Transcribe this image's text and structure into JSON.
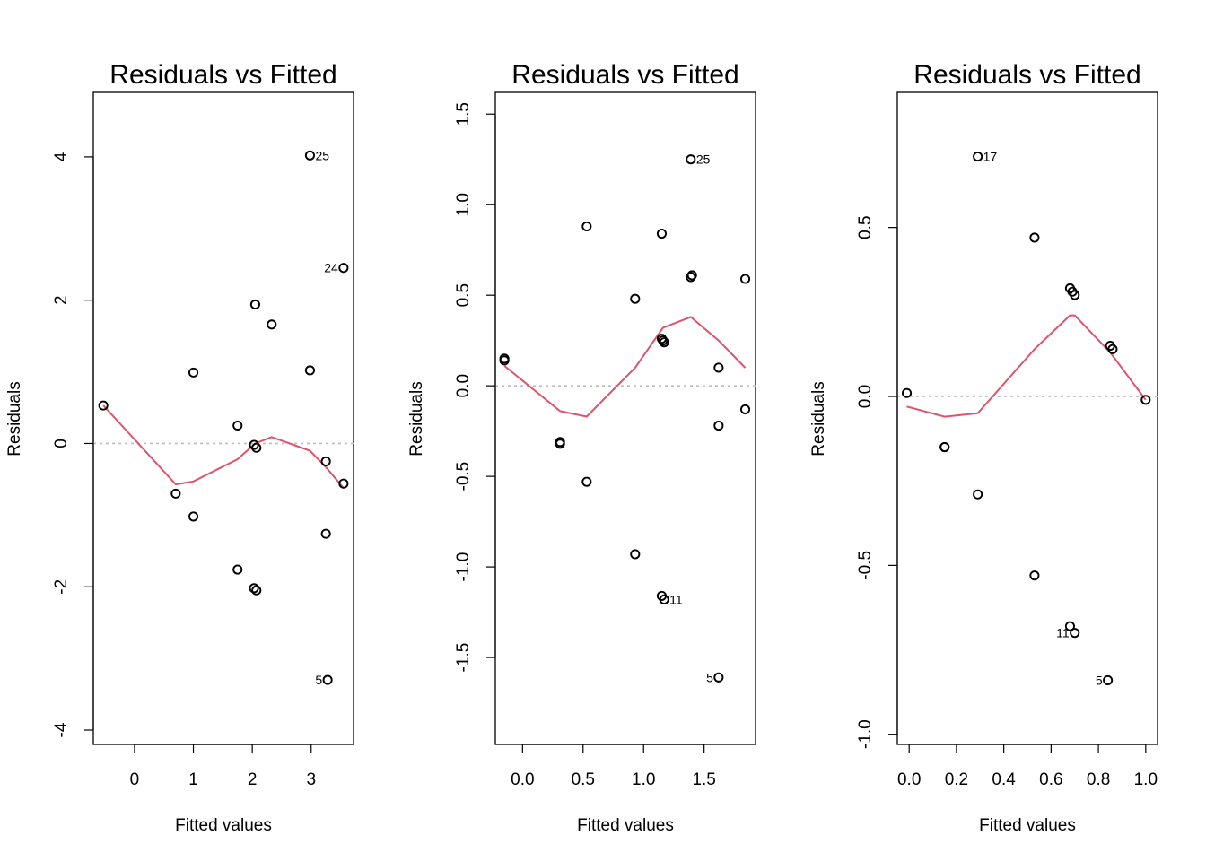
{
  "colors": {
    "smoother": "#DF536B",
    "zero_line": "#BEBEBE",
    "points": "#000000"
  },
  "chart_data": [
    {
      "type": "scatter",
      "title": "Residuals vs Fitted",
      "xlabel": "Fitted values",
      "ylabel": "Residuals",
      "xlim": [
        -0.7,
        3.72
      ],
      "ylim": [
        -4.2,
        4.9
      ],
      "xticks": [
        0,
        1,
        2,
        3
      ],
      "yticks": [
        -4,
        -2,
        0,
        2,
        4
      ],
      "points": [
        {
          "x": -0.53,
          "y": 0.53
        },
        {
          "x": 0.7,
          "y": -0.7
        },
        {
          "x": 1.0,
          "y": 0.99
        },
        {
          "x": 1.0,
          "y": -1.02
        },
        {
          "x": 1.75,
          "y": 0.25
        },
        {
          "x": 1.75,
          "y": -1.76
        },
        {
          "x": 2.03,
          "y": -0.02
        },
        {
          "x": 2.07,
          "y": -0.06
        },
        {
          "x": 2.05,
          "y": 1.94
        },
        {
          "x": 2.03,
          "y": -2.02
        },
        {
          "x": 2.07,
          "y": -2.05
        },
        {
          "x": 2.33,
          "y": 1.66
        },
        {
          "x": 2.98,
          "y": 4.02,
          "label": "25",
          "label_side": "right"
        },
        {
          "x": 2.98,
          "y": 1.02
        },
        {
          "x": 3.25,
          "y": -0.25
        },
        {
          "x": 3.25,
          "y": -1.26
        },
        {
          "x": 3.28,
          "y": -3.3,
          "label": "5",
          "label_side": "left"
        },
        {
          "x": 3.55,
          "y": 2.45,
          "label": "24",
          "label_side": "left"
        },
        {
          "x": 3.55,
          "y": -0.56
        }
      ],
      "smoother": [
        {
          "x": -0.53,
          "y": 0.53
        },
        {
          "x": 0.7,
          "y": -0.57
        },
        {
          "x": 1.0,
          "y": -0.53
        },
        {
          "x": 1.75,
          "y": -0.22
        },
        {
          "x": 2.05,
          "y": 0.0
        },
        {
          "x": 2.33,
          "y": 0.09
        },
        {
          "x": 2.98,
          "y": -0.1
        },
        {
          "x": 3.25,
          "y": -0.33
        },
        {
          "x": 3.55,
          "y": -0.62
        }
      ]
    },
    {
      "type": "scatter",
      "title": "Residuals vs Fitted",
      "xlabel": "Fitted values",
      "ylabel": "Residuals",
      "xlim": [
        -0.225,
        1.925
      ],
      "ylim": [
        -1.98,
        1.62
      ],
      "xticks": [
        0.0,
        0.5,
        1.0,
        1.5
      ],
      "yticks": [
        -1.5,
        -1.0,
        -0.5,
        0.0,
        0.5,
        1.0,
        1.5
      ],
      "points": [
        {
          "x": -0.15,
          "y": 0.15
        },
        {
          "x": -0.15,
          "y": 0.14
        },
        {
          "x": 0.31,
          "y": -0.31
        },
        {
          "x": 0.31,
          "y": -0.32
        },
        {
          "x": 0.53,
          "y": 0.88
        },
        {
          "x": 0.53,
          "y": -0.53
        },
        {
          "x": 0.93,
          "y": 0.48
        },
        {
          "x": 0.93,
          "y": -0.93
        },
        {
          "x": 1.15,
          "y": 0.84
        },
        {
          "x": 1.15,
          "y": 0.26
        },
        {
          "x": 1.17,
          "y": 0.24
        },
        {
          "x": 1.16,
          "y": 0.25
        },
        {
          "x": 1.15,
          "y": -1.16
        },
        {
          "x": 1.17,
          "y": -1.18,
          "label": "11",
          "label_side": "right"
        },
        {
          "x": 1.39,
          "y": 1.25,
          "label": "25",
          "label_side": "right"
        },
        {
          "x": 1.39,
          "y": 0.6
        },
        {
          "x": 1.4,
          "y": 0.61
        },
        {
          "x": 1.62,
          "y": 0.1
        },
        {
          "x": 1.62,
          "y": -0.22
        },
        {
          "x": 1.62,
          "y": -1.61,
          "label": "5",
          "label_side": "left"
        },
        {
          "x": 1.84,
          "y": 0.59
        },
        {
          "x": 1.84,
          "y": -0.13
        }
      ],
      "smoother": [
        {
          "x": -0.15,
          "y": 0.11
        },
        {
          "x": 0.31,
          "y": -0.14
        },
        {
          "x": 0.53,
          "y": -0.17
        },
        {
          "x": 0.93,
          "y": 0.1
        },
        {
          "x": 1.16,
          "y": 0.32
        },
        {
          "x": 1.39,
          "y": 0.38
        },
        {
          "x": 1.62,
          "y": 0.25
        },
        {
          "x": 1.84,
          "y": 0.1
        }
      ]
    },
    {
      "type": "scatter",
      "title": "Residuals vs Fitted",
      "xlabel": "Fitted values",
      "ylabel": "Residuals",
      "xlim": [
        -0.05,
        1.05
      ],
      "ylim": [
        -1.03,
        0.9
      ],
      "xticks": [
        0.0,
        0.2,
        0.4,
        0.6,
        0.8,
        1.0
      ],
      "yticks": [
        -1.0,
        -0.5,
        0.0,
        0.5
      ],
      "points": [
        {
          "x": -0.01,
          "y": 0.01
        },
        {
          "x": 0.15,
          "y": -0.15
        },
        {
          "x": 0.15,
          "y": -0.15
        },
        {
          "x": 0.29,
          "y": 0.71,
          "label": "17",
          "label_side": "right"
        },
        {
          "x": 0.29,
          "y": -0.29
        },
        {
          "x": 0.53,
          "y": 0.47
        },
        {
          "x": 0.53,
          "y": -0.53
        },
        {
          "x": 0.68,
          "y": 0.32
        },
        {
          "x": 0.69,
          "y": 0.31
        },
        {
          "x": 0.7,
          "y": 0.3
        },
        {
          "x": 0.68,
          "y": -0.68
        },
        {
          "x": 0.7,
          "y": -0.7,
          "label": "11",
          "label_side": "left"
        },
        {
          "x": 0.85,
          "y": 0.15
        },
        {
          "x": 0.86,
          "y": 0.14
        },
        {
          "x": 0.84,
          "y": -0.84,
          "label": "5",
          "label_side": "left"
        },
        {
          "x": 1.0,
          "y": -0.01
        }
      ],
      "smoother": [
        {
          "x": -0.01,
          "y": -0.03
        },
        {
          "x": 0.15,
          "y": -0.06
        },
        {
          "x": 0.29,
          "y": -0.05
        },
        {
          "x": 0.53,
          "y": 0.14
        },
        {
          "x": 0.68,
          "y": 0.24
        },
        {
          "x": 0.7,
          "y": 0.24
        },
        {
          "x": 0.85,
          "y": 0.13
        },
        {
          "x": 1.0,
          "y": -0.01
        }
      ]
    }
  ]
}
